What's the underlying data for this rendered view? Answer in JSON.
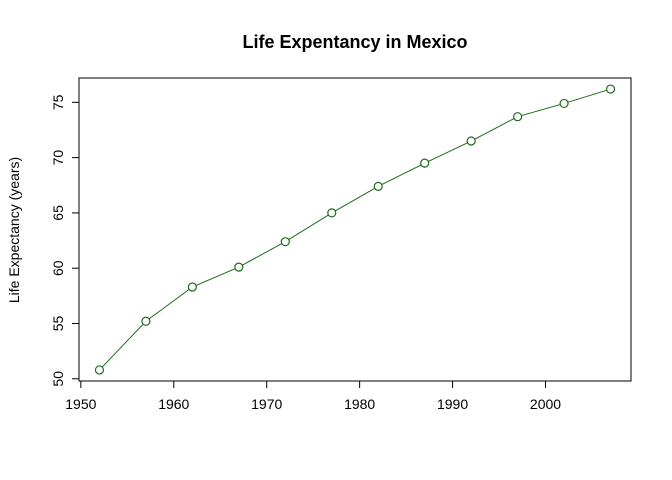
{
  "chart_data": {
    "type": "line",
    "title": "Life Expentancy in Mexico",
    "xlabel": "",
    "ylabel": "Life Expectancy (years)",
    "x": [
      1952,
      1957,
      1962,
      1967,
      1972,
      1977,
      1982,
      1987,
      1992,
      1997,
      2002,
      2007
    ],
    "series": [
      {
        "values": [
          50.8,
          55.2,
          58.3,
          60.1,
          62.4,
          65.0,
          67.4,
          69.5,
          71.5,
          73.7,
          74.9,
          76.2
        ]
      }
    ],
    "xticks": [
      1950,
      1960,
      1970,
      1980,
      1990,
      2000
    ],
    "yticks": [
      50,
      55,
      60,
      65,
      70,
      75
    ],
    "xlim": [
      1949.8,
      2009.2
    ],
    "ylim": [
      49.8,
      77.2
    ],
    "grid": false,
    "markers": "open-circle",
    "color": "#1a6b1a"
  }
}
